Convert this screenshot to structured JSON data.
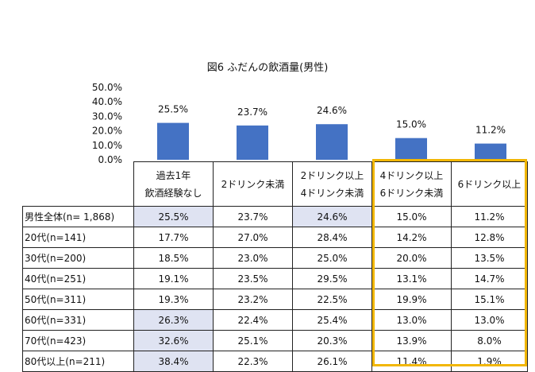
{
  "chart_data": {
    "type": "bar",
    "title": "図6 ふだんの飲酒量(男性)",
    "categories": [
      "過去1年飲酒経験なし",
      "2ドリンク未満",
      "2ドリンク以上4ドリンク未満",
      "4ドリンク以上6ドリンク未満",
      "6ドリンク以上"
    ],
    "values": [
      25.5,
      23.7,
      24.6,
      15.0,
      11.2
    ],
    "data_labels": [
      "25.5%",
      "23.7%",
      "24.6%",
      "15.0%",
      "11.2%"
    ],
    "y_ticks": [
      "0.0%",
      "10.0%",
      "20.0%",
      "30.0%",
      "40.0%",
      "50.0%"
    ],
    "ylim": [
      0,
      50
    ],
    "bar_color": "#4472c4",
    "highlight_color": "#dfe3f2",
    "box_color": "#f2b705"
  },
  "table": {
    "headers": [
      [
        "過去1年",
        "飲酒経験なし"
      ],
      [
        "2ドリンク未満"
      ],
      [
        "2ドリンク以上",
        "4ドリンク未満"
      ],
      [
        "4ドリンク以上",
        "6ドリンク未満"
      ],
      [
        "6ドリンク以上"
      ]
    ],
    "rows": [
      {
        "label": "男性全体(n= 1,868)",
        "cells": [
          "25.5%",
          "23.7%",
          "24.6%",
          "15.0%",
          "11.2%"
        ],
        "highlight": [
          0,
          2
        ]
      },
      {
        "label": "20代(n=141)",
        "cells": [
          "17.7%",
          "27.0%",
          "28.4%",
          "14.2%",
          "12.8%"
        ],
        "highlight": []
      },
      {
        "label": "30代(n=200)",
        "cells": [
          "18.5%",
          "23.0%",
          "25.0%",
          "20.0%",
          "13.5%"
        ],
        "highlight": []
      },
      {
        "label": "40代(n=251)",
        "cells": [
          "19.1%",
          "23.5%",
          "29.5%",
          "13.1%",
          "14.7%"
        ],
        "highlight": []
      },
      {
        "label": "50代(n=311)",
        "cells": [
          "19.3%",
          "23.2%",
          "22.5%",
          "19.9%",
          "15.1%"
        ],
        "highlight": []
      },
      {
        "label": "60代(n=331)",
        "cells": [
          "26.3%",
          "22.4%",
          "25.4%",
          "13.0%",
          "13.0%"
        ],
        "highlight": [
          0
        ]
      },
      {
        "label": "70代(n=423)",
        "cells": [
          "32.6%",
          "25.1%",
          "20.3%",
          "13.9%",
          "8.0%"
        ],
        "highlight": [
          0
        ]
      },
      {
        "label": "80代以上(n=211)",
        "cells": [
          "38.4%",
          "22.3%",
          "26.1%",
          "11.4%",
          "1.9%"
        ],
        "highlight": [
          0
        ]
      }
    ]
  }
}
